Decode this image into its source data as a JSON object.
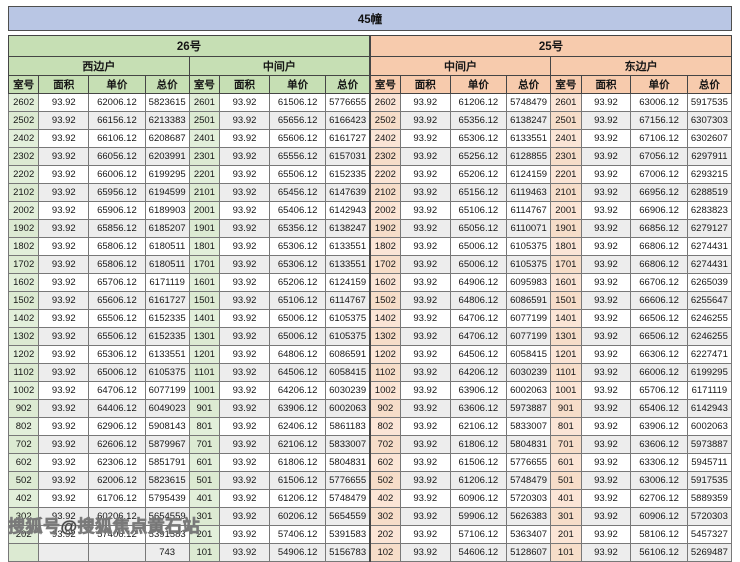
{
  "banner": {
    "title": "45幢"
  },
  "watermark": "搜狐号@搜狐焦点黄石站",
  "colors": {
    "banner_blue": "#b9c6e4",
    "header_green": "#c6dfb4",
    "header_peach": "#f7cbad",
    "room_green_tint": "#e2efda",
    "room_peach_tint": "#fbe5d6",
    "stripe_gray": "#ededed"
  },
  "table": {
    "columns": [
      "室号",
      "面积",
      "单价",
      "总价"
    ],
    "groups": [
      {
        "label": "26号",
        "sides": [
          {
            "label": "西边户"
          },
          {
            "label": "中间户"
          }
        ]
      },
      {
        "label": "25号",
        "sides": [
          {
            "label": "中间户"
          },
          {
            "label": "东边户"
          }
        ]
      }
    ],
    "rows": [
      [
        "2602",
        "93.92",
        "62006.12",
        "5823615",
        "2601",
        "93.92",
        "61506.12",
        "5776655",
        "2602",
        "93.92",
        "61206.12",
        "5748479",
        "2601",
        "93.92",
        "63006.12",
        "5917535"
      ],
      [
        "2502",
        "93.92",
        "66156.12",
        "6213383",
        "2501",
        "93.92",
        "65656.12",
        "6166423",
        "2502",
        "93.92",
        "65356.12",
        "6138247",
        "2501",
        "93.92",
        "67156.12",
        "6307303"
      ],
      [
        "2402",
        "93.92",
        "66106.12",
        "6208687",
        "2401",
        "93.92",
        "65606.12",
        "6161727",
        "2402",
        "93.92",
        "65306.12",
        "6133551",
        "2401",
        "93.92",
        "67106.12",
        "6302607"
      ],
      [
        "2302",
        "93.92",
        "66056.12",
        "6203991",
        "2301",
        "93.92",
        "65556.12",
        "6157031",
        "2302",
        "93.92",
        "65256.12",
        "6128855",
        "2301",
        "93.92",
        "67056.12",
        "6297911"
      ],
      [
        "2202",
        "93.92",
        "66006.12",
        "6199295",
        "2201",
        "93.92",
        "65506.12",
        "6152335",
        "2202",
        "93.92",
        "65206.12",
        "6124159",
        "2201",
        "93.92",
        "67006.12",
        "6293215"
      ],
      [
        "2102",
        "93.92",
        "65956.12",
        "6194599",
        "2101",
        "93.92",
        "65456.12",
        "6147639",
        "2102",
        "93.92",
        "65156.12",
        "6119463",
        "2101",
        "93.92",
        "66956.12",
        "6288519"
      ],
      [
        "2002",
        "93.92",
        "65906.12",
        "6189903",
        "2001",
        "93.92",
        "65406.12",
        "6142943",
        "2002",
        "93.92",
        "65106.12",
        "6114767",
        "2001",
        "93.92",
        "66906.12",
        "6283823"
      ],
      [
        "1902",
        "93.92",
        "65856.12",
        "6185207",
        "1901",
        "93.92",
        "65356.12",
        "6138247",
        "1902",
        "93.92",
        "65056.12",
        "6110071",
        "1901",
        "93.92",
        "66856.12",
        "6279127"
      ],
      [
        "1802",
        "93.92",
        "65806.12",
        "6180511",
        "1801",
        "93.92",
        "65306.12",
        "6133551",
        "1802",
        "93.92",
        "65006.12",
        "6105375",
        "1801",
        "93.92",
        "66806.12",
        "6274431"
      ],
      [
        "1702",
        "93.92",
        "65806.12",
        "6180511",
        "1701",
        "93.92",
        "65306.12",
        "6133551",
        "1702",
        "93.92",
        "65006.12",
        "6105375",
        "1701",
        "93.92",
        "66806.12",
        "6274431"
      ],
      [
        "1602",
        "93.92",
        "65706.12",
        "6171119",
        "1601",
        "93.92",
        "65206.12",
        "6124159",
        "1602",
        "93.92",
        "64906.12",
        "6095983",
        "1601",
        "93.92",
        "66706.12",
        "6265039"
      ],
      [
        "1502",
        "93.92",
        "65606.12",
        "6161727",
        "1501",
        "93.92",
        "65106.12",
        "6114767",
        "1502",
        "93.92",
        "64806.12",
        "6086591",
        "1501",
        "93.92",
        "66606.12",
        "6255647"
      ],
      [
        "1402",
        "93.92",
        "65506.12",
        "6152335",
        "1401",
        "93.92",
        "65006.12",
        "6105375",
        "1402",
        "93.92",
        "64706.12",
        "6077199",
        "1401",
        "93.92",
        "66506.12",
        "6246255"
      ],
      [
        "1302",
        "93.92",
        "65506.12",
        "6152335",
        "1301",
        "93.92",
        "65006.12",
        "6105375",
        "1302",
        "93.92",
        "64706.12",
        "6077199",
        "1301",
        "93.92",
        "66506.12",
        "6246255"
      ],
      [
        "1202",
        "93.92",
        "65306.12",
        "6133551",
        "1201",
        "93.92",
        "64806.12",
        "6086591",
        "1202",
        "93.92",
        "64506.12",
        "6058415",
        "1201",
        "93.92",
        "66306.12",
        "6227471"
      ],
      [
        "1102",
        "93.92",
        "65006.12",
        "6105375",
        "1101",
        "93.92",
        "64506.12",
        "6058415",
        "1102",
        "93.92",
        "64206.12",
        "6030239",
        "1101",
        "93.92",
        "66006.12",
        "6199295"
      ],
      [
        "1002",
        "93.92",
        "64706.12",
        "6077199",
        "1001",
        "93.92",
        "64206.12",
        "6030239",
        "1002",
        "93.92",
        "63906.12",
        "6002063",
        "1001",
        "93.92",
        "65706.12",
        "6171119"
      ],
      [
        "902",
        "93.92",
        "64406.12",
        "6049023",
        "901",
        "93.92",
        "63906.12",
        "6002063",
        "902",
        "93.92",
        "63606.12",
        "5973887",
        "901",
        "93.92",
        "65406.12",
        "6142943"
      ],
      [
        "802",
        "93.92",
        "62906.12",
        "5908143",
        "801",
        "93.92",
        "62406.12",
        "5861183",
        "802",
        "93.92",
        "62106.12",
        "5833007",
        "801",
        "93.92",
        "63906.12",
        "6002063"
      ],
      [
        "702",
        "93.92",
        "62606.12",
        "5879967",
        "701",
        "93.92",
        "62106.12",
        "5833007",
        "702",
        "93.92",
        "61806.12",
        "5804831",
        "701",
        "93.92",
        "63606.12",
        "5973887"
      ],
      [
        "602",
        "93.92",
        "62306.12",
        "5851791",
        "601",
        "93.92",
        "61806.12",
        "5804831",
        "602",
        "93.92",
        "61506.12",
        "5776655",
        "601",
        "93.92",
        "63306.12",
        "5945711"
      ],
      [
        "502",
        "93.92",
        "62006.12",
        "5823615",
        "501",
        "93.92",
        "61506.12",
        "5776655",
        "502",
        "93.92",
        "61206.12",
        "5748479",
        "501",
        "93.92",
        "63006.12",
        "5917535"
      ],
      [
        "402",
        "93.92",
        "61706.12",
        "5795439",
        "401",
        "93.92",
        "61206.12",
        "5748479",
        "402",
        "93.92",
        "60906.12",
        "5720303",
        "401",
        "93.92",
        "62706.12",
        "5889359"
      ],
      [
        "302",
        "93.92",
        "60206.12",
        "5654559",
        "301",
        "93.92",
        "60206.12",
        "5654559",
        "302",
        "93.92",
        "59906.12",
        "5626383",
        "301",
        "93.92",
        "60906.12",
        "5720303"
      ],
      [
        "202",
        "93.92",
        "57406.12",
        "5391583",
        "201",
        "93.92",
        "57406.12",
        "5391583",
        "202",
        "93.92",
        "57106.12",
        "5363407",
        "201",
        "93.92",
        "58106.12",
        "5457327"
      ],
      [
        "",
        "",
        "",
        "743",
        "101",
        "93.92",
        "54906.12",
        "5156783",
        "102",
        "93.92",
        "54606.12",
        "5128607",
        "101",
        "93.92",
        "56106.12",
        "5269487"
      ]
    ]
  }
}
